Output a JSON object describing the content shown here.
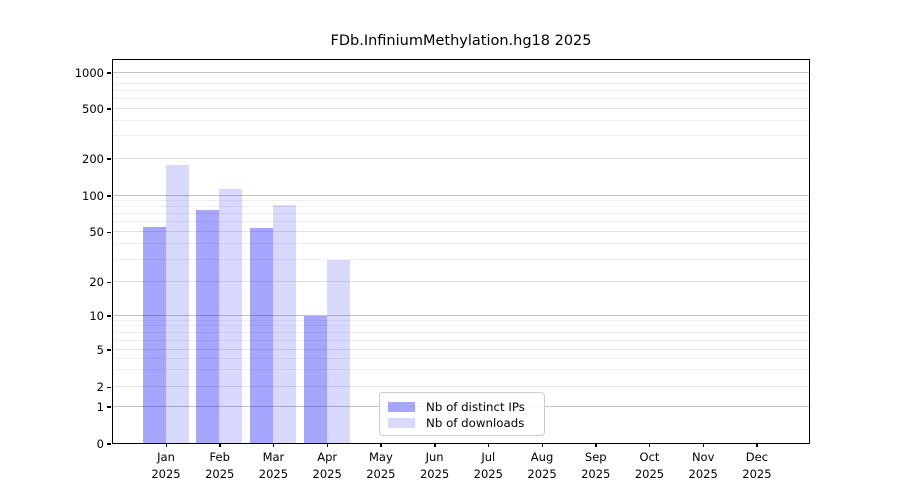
{
  "title": "FDb.InfiniumMethylation.hg18 2025",
  "chart_data": {
    "type": "bar",
    "title": "FDb.InfiniumMethylation.hg18 2025",
    "categories": [
      "Jan 2025",
      "Feb 2025",
      "Mar 2025",
      "Apr 2025",
      "May 2025",
      "Jun 2025",
      "Jul 2025",
      "Aug 2025",
      "Sep 2025",
      "Oct 2025",
      "Nov 2025",
      "Dec 2025"
    ],
    "series": [
      {
        "name": "Nb of distinct IPs",
        "color": "rgba(0,0,255,0.35)",
        "values": [
          55,
          76,
          54,
          10,
          0,
          0,
          0,
          0,
          0,
          0,
          0,
          0
        ]
      },
      {
        "name": "Nb of downloads",
        "color": "rgba(0,0,255,0.15)",
        "values": [
          180,
          115,
          85,
          30,
          0,
          0,
          0,
          0,
          0,
          0,
          0,
          0
        ]
      }
    ],
    "xlabel": "",
    "ylabel": "",
    "y_scale": "symlog",
    "y_ticks": [
      0,
      1,
      2,
      5,
      10,
      20,
      50,
      100,
      200,
      500,
      1000
    ],
    "y_minor_ticks": [
      3,
      4,
      6,
      7,
      8,
      9,
      30,
      40,
      60,
      70,
      80,
      90,
      300,
      400,
      600,
      700,
      800,
      900
    ],
    "ylim": [
      0,
      1300
    ],
    "grid": true,
    "legend_position": "lower center",
    "colors": {
      "major_gridline": "#c3c3c3",
      "labeled_gridline": "#e2e2e2",
      "minor_gridline": "#efefef",
      "spine": "#000000",
      "bar_ips": "rgba(0,0,255,0.35)",
      "bar_downloads": "rgba(0,0,255,0.15)"
    }
  },
  "legend": {
    "items": [
      {
        "label": "Nb of distinct IPs"
      },
      {
        "label": "Nb of downloads"
      }
    ]
  }
}
